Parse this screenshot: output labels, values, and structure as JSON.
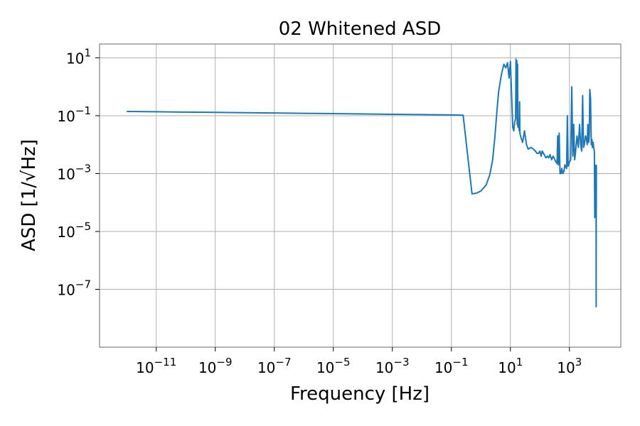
{
  "chart_data": {
    "type": "line",
    "title": "02 Whitened ASD",
    "xlabel": "Frequency [Hz]",
    "ylabel": "ASD [1/√Hz]",
    "x_scale": "log",
    "y_scale": "log",
    "xlim": [
      1.2e-13,
      55000.0
    ],
    "ylim": [
      1e-09,
      30
    ],
    "grid": true,
    "x_ticks": [
      {
        "value": 1e-11,
        "base": "10",
        "exp": "−11"
      },
      {
        "value": 1e-09,
        "base": "10",
        "exp": "−9"
      },
      {
        "value": 1e-07,
        "base": "10",
        "exp": "−7"
      },
      {
        "value": 1e-05,
        "base": "10",
        "exp": "−5"
      },
      {
        "value": 0.001,
        "base": "10",
        "exp": "−3"
      },
      {
        "value": 0.1,
        "base": "10",
        "exp": "−1"
      },
      {
        "value": 10,
        "base": "10",
        "exp": "1"
      },
      {
        "value": 1000,
        "base": "10",
        "exp": "3"
      }
    ],
    "y_ticks": [
      {
        "value": 10,
        "base": "10",
        "exp": "1"
      },
      {
        "value": 0.1,
        "base": "10",
        "exp": "−1"
      },
      {
        "value": 0.001,
        "base": "10",
        "exp": "−3"
      },
      {
        "value": 1e-05,
        "base": "10",
        "exp": "−5"
      },
      {
        "value": 1e-07,
        "base": "10",
        "exp": "−7"
      }
    ],
    "colors": {
      "line": "#1f77b4",
      "frame": "#808080",
      "grid": "#b0b0b0"
    },
    "series": [
      {
        "x": [
          1e-12,
          1e-11,
          1e-10,
          1e-09,
          1e-08,
          1e-07,
          1e-06,
          1e-05,
          0.0001,
          0.001,
          0.01,
          0.1,
          0.25,
          0.5,
          0.7,
          1.0,
          1.5,
          2.0,
          2.5,
          3.0,
          3.5,
          4.0,
          5.0,
          6.0,
          7.0,
          8.0,
          9.0,
          10.0,
          11.0,
          12.0,
          13.0,
          14.0,
          15.0,
          15.5,
          16.0,
          16.5,
          17.0,
          17.5,
          18.0,
          19.0,
          20.0,
          20.5,
          21.0,
          22.0,
          24.0,
          26.0,
          30.0,
          35.0,
          40.0,
          50.0,
          60.0,
          70.0,
          80.0,
          90.0,
          100.0,
          110.0,
          120.0,
          140.0,
          160.0,
          180.0,
          200.0,
          220.0,
          250.0,
          280.0,
          300.0,
          320.0,
          350.0,
          380.0,
          400.0,
          420.0,
          450.0,
          480.0,
          500.0,
          520.0,
          550.0,
          600.0,
          650.0,
          700.0,
          800.0,
          850.0,
          900.0,
          1000.0,
          1100.0,
          1200.0,
          1300.0,
          1400.0,
          1500.0,
          1600.0,
          1800.0,
          2000.0,
          2200.0,
          2400.0,
          2600.0,
          2800.0,
          3000.0,
          3200.0,
          3500.0,
          3800.0,
          4000.0,
          4200.0,
          4500.0,
          4700.0,
          4900.0,
          5200.0,
          5500.0,
          5800.0,
          6000.0,
          6200.0,
          6400.0,
          6600.0,
          6800.0,
          7000.0,
          7200.0,
          7400.0,
          7600.0,
          7800.0,
          8000.0,
          8050.0,
          8100.0,
          8150.0,
          8192.0
        ],
        "y": [
          0.14,
          0.137,
          0.133,
          0.13,
          0.127,
          0.124,
          0.121,
          0.118,
          0.115,
          0.112,
          0.109,
          0.106,
          0.104,
          0.0002,
          0.00021,
          0.00025,
          0.0004,
          0.0009,
          0.003,
          0.02,
          0.15,
          0.7,
          2.8,
          6.0,
          4.5,
          6.8,
          2.0,
          7.5,
          0.5,
          0.04,
          0.03,
          0.06,
          0.08,
          9.0,
          0.3,
          8.0,
          0.05,
          6.0,
          0.04,
          0.05,
          0.03,
          0.3,
          0.025,
          0.02,
          0.015,
          0.012,
          0.03,
          0.01,
          0.007,
          0.008,
          0.007,
          0.006,
          0.005,
          0.005,
          0.006,
          0.004,
          0.006,
          0.0045,
          0.0035,
          0.004,
          0.0035,
          0.0045,
          0.003,
          0.004,
          0.0035,
          0.003,
          0.0025,
          0.0022,
          0.02,
          0.002,
          0.025,
          0.001,
          0.0012,
          0.001,
          0.0015,
          0.001,
          0.0012,
          0.002,
          0.0015,
          0.1,
          0.0018,
          0.0025,
          0.003,
          1.0,
          0.004,
          0.05,
          0.003,
          0.005,
          0.02,
          0.008,
          0.05,
          0.01,
          0.006,
          0.5,
          0.008,
          0.01,
          0.02,
          0.015,
          0.01,
          0.05,
          0.012,
          0.02,
          0.8,
          0.4,
          0.01,
          0.015,
          0.008,
          0.01,
          0.012,
          0.008,
          0.007,
          0.006,
          3e-05,
          0.002,
          5e-05,
          0.0006,
          0.0002,
          2.5e-08,
          3e-05,
          0.0001,
          0.002
        ]
      }
    ]
  }
}
